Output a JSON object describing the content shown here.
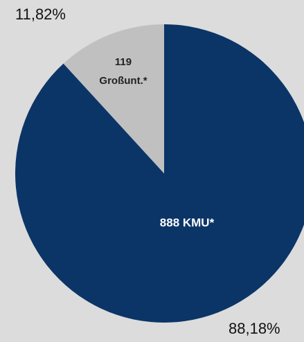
{
  "chart_data": {
    "type": "pie",
    "categories": [
      [
        "888 KMU*"
      ],
      [
        "119",
        "Großunt.*"
      ]
    ],
    "values": [
      88.18,
      11.82
    ],
    "value_labels": [
      "88,18%",
      "11,82%"
    ],
    "colors": [
      "#0b3567",
      "#c0c0c0"
    ]
  }
}
